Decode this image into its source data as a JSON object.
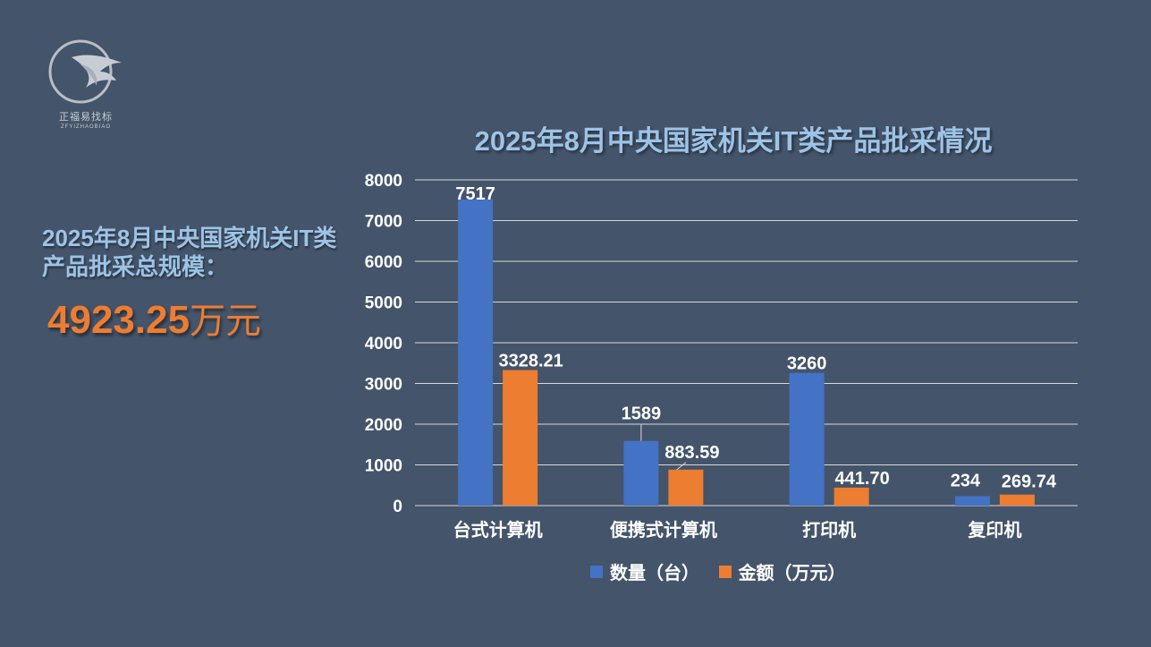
{
  "logo": {
    "name_cn": "正福易找标",
    "name_en": "ZFYIZHAOBIAO"
  },
  "summary": {
    "label": "2025年8月中央国家机关IT类产品批采总规模：",
    "value": "4923.25",
    "unit": "万元"
  },
  "colors": {
    "background": "#44546a",
    "series_count": "#4472c4",
    "series_amount": "#ed7d31",
    "title": "#9dc3e6"
  },
  "chart_data": {
    "type": "bar",
    "title": "2025年8月中央国家机关IT类产品批采情况",
    "categories": [
      "台式计算机",
      "便携式计算机",
      "打印机",
      "复印机"
    ],
    "series": [
      {
        "name": "数量（台）",
        "values": [
          7517,
          1589,
          3260,
          234
        ],
        "labels": [
          "7517",
          "1589",
          "3260",
          "234"
        ]
      },
      {
        "name": "金额（万元）",
        "values": [
          3328.21,
          883.59,
          441.7,
          269.74
        ],
        "labels": [
          "3328.21",
          "883.59",
          "441.70",
          "269.74"
        ]
      }
    ],
    "ylim": [
      0,
      8000
    ],
    "yticks": [
      "0",
      "1000",
      "2000",
      "3000",
      "4000",
      "5000",
      "6000",
      "7000",
      "8000"
    ],
    "grid": true,
    "legend": "bottom"
  }
}
